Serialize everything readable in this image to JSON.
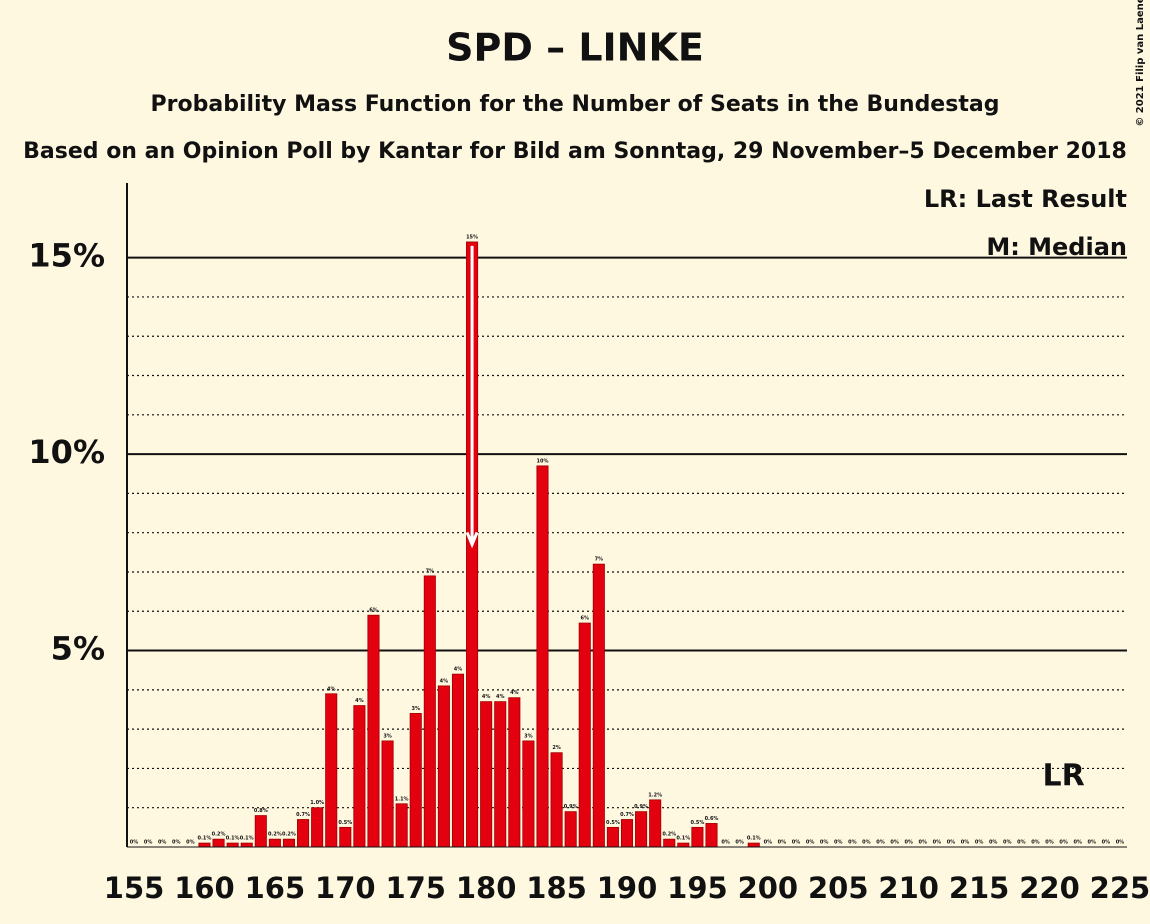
{
  "chart_data": {
    "type": "bar",
    "title": "SPD – LINKE",
    "subtitle": "Probability Mass Function for the Number of Seats in the Bundestag",
    "subtitle2": "Based on an Opinion Poll by Kantar for Bild am Sonntag, 29 November–5 December 2018",
    "copyright": "© 2021 Filip van Laenen",
    "x": [
      155,
      156,
      157,
      158,
      159,
      160,
      161,
      162,
      163,
      164,
      165,
      166,
      167,
      168,
      169,
      170,
      171,
      172,
      173,
      174,
      175,
      176,
      177,
      178,
      179,
      180,
      181,
      182,
      183,
      184,
      185,
      186,
      187,
      188,
      189,
      190,
      191,
      192,
      193,
      194,
      195,
      196,
      197,
      198,
      199,
      200,
      201,
      202,
      203,
      204,
      205,
      206,
      207,
      208,
      209,
      210,
      211,
      212,
      213,
      214,
      215,
      216,
      217,
      218,
      219,
      220,
      221,
      222,
      223,
      224,
      225
    ],
    "values": [
      0,
      0,
      0,
      0,
      0,
      0.1,
      0.2,
      0.1,
      0.1,
      0.8,
      0.2,
      0.2,
      0.7,
      1.0,
      3.9,
      0.5,
      3.6,
      5.9,
      2.7,
      1.1,
      3.4,
      6.9,
      4.1,
      4.4,
      15.4,
      3.7,
      3.7,
      3.8,
      2.7,
      9.7,
      2.4,
      0.9,
      5.7,
      7.2,
      0.5,
      0.7,
      0.9,
      1.2,
      0.2,
      0.1,
      0.5,
      0.6,
      0,
      0,
      0.1,
      0,
      0,
      0,
      0,
      0,
      0,
      0,
      0,
      0,
      0,
      0,
      0,
      0,
      0,
      0,
      0,
      0,
      0,
      0,
      0,
      0,
      0,
      0,
      0,
      0,
      0
    ],
    "value_labels": [
      "0%",
      "0%",
      "0%",
      "0%",
      "0%",
      "0.1%",
      "0.2%",
      "0.1%",
      "0.1%",
      "0.8%",
      "0.2%",
      "0.2%",
      "0.7%",
      "1.0%",
      "4%",
      "0.5%",
      "4%",
      "6%",
      "3%",
      "1.1%",
      "3%",
      "7%",
      "4%",
      "4%",
      "15%",
      "4%",
      "4%",
      "4%",
      "3%",
      "10%",
      "2%",
      "0.9%",
      "6%",
      "7%",
      "0.5%",
      "0.7%",
      "0.9%",
      "1.2%",
      "0.2%",
      "0.1%",
      "0.5%",
      "0.6%",
      "0%",
      "0%",
      "0.1%",
      "0%",
      "0%",
      "0%",
      "0%",
      "0%",
      "0%",
      "0%",
      "0%",
      "0%",
      "0%",
      "0%",
      "0%",
      "0%",
      "0%",
      "0%",
      "0%",
      "0%",
      "0%",
      "0%",
      "0%",
      "0%",
      "0%",
      "0%",
      "0%",
      "0%",
      "0%"
    ],
    "color": "#e3000f",
    "xlim": [
      154.5,
      225.5
    ],
    "xticks": [
      155,
      160,
      165,
      170,
      175,
      180,
      185,
      190,
      195,
      200,
      205,
      210,
      215,
      220,
      225
    ],
    "ylim": [
      0,
      16.9
    ],
    "yticks": [
      {
        "value": 5,
        "label": "5%"
      },
      {
        "value": 10,
        "label": "10%"
      },
      {
        "value": 15,
        "label": "15%"
      }
    ],
    "yminor": [
      1,
      2,
      3,
      4,
      6,
      7,
      8,
      9,
      11,
      12,
      13,
      14
    ],
    "grid": true,
    "legend": [
      "LR: Last Result",
      "M: Median"
    ],
    "legend_position": "top-right",
    "median": 179,
    "last_result": 221,
    "last_result_label": "LR"
  }
}
